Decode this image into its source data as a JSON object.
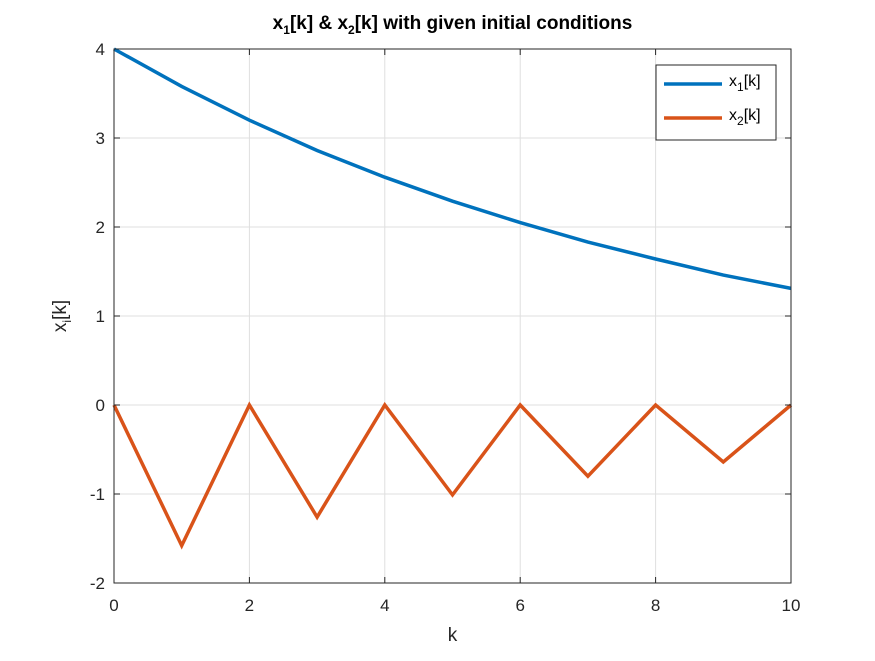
{
  "chart_data": {
    "type": "line",
    "title": {
      "base1": "x",
      "sub1": "1",
      "mid": "[k] & x",
      "sub2": "2",
      "rest": "[k] with given initial conditions"
    },
    "xlabel": "k",
    "ylabel": {
      "base": "x",
      "sub": "i",
      "rest": "[k]"
    },
    "xlim": [
      0,
      10
    ],
    "ylim": [
      -2,
      4
    ],
    "xticks": [
      0,
      2,
      4,
      6,
      8,
      10
    ],
    "yticks": [
      -2,
      -1,
      0,
      1,
      2,
      3,
      4
    ],
    "grid": true,
    "legend_position": "top-right",
    "x": [
      0,
      1,
      2,
      3,
      4,
      5,
      6,
      7,
      8,
      9,
      10
    ],
    "series": [
      {
        "legend": {
          "base": "x",
          "sub": "1",
          "rest": "[k]"
        },
        "color": "#0072BD",
        "values": [
          4.0,
          3.58,
          3.2,
          2.86,
          2.56,
          2.29,
          2.05,
          1.83,
          1.64,
          1.46,
          1.31
        ]
      },
      {
        "legend": {
          "base": "x",
          "sub": "2",
          "rest": "[k]"
        },
        "color": "#D95319",
        "values": [
          0,
          -1.58,
          0,
          -1.26,
          0,
          -1.01,
          0,
          -0.8,
          0,
          -0.64,
          0
        ]
      }
    ]
  }
}
